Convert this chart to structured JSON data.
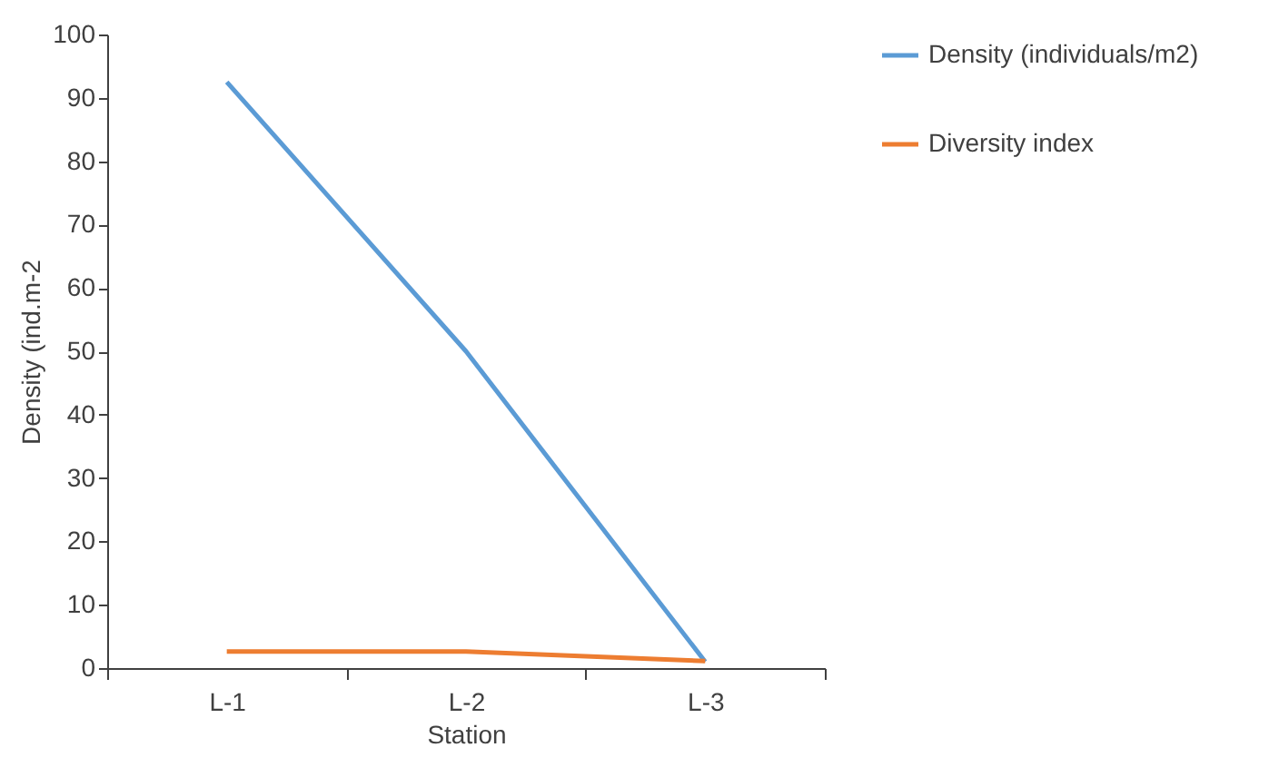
{
  "chart_data": {
    "type": "line",
    "xlabel": "Station",
    "ylabel": "Density (ind.m-2",
    "categories": [
      "L-1",
      "L-2",
      "L-3"
    ],
    "series": [
      {
        "name": "Density (individuals/m2)",
        "color": "#5b9bd5",
        "values": [
          92.5,
          50,
          1
        ]
      },
      {
        "name": "Diversity index",
        "color": "#ed7d31",
        "values": [
          2.6,
          2.6,
          1.1
        ]
      }
    ],
    "ylim": [
      0,
      100
    ],
    "yticks": [
      0,
      10,
      20,
      30,
      40,
      50,
      60,
      70,
      80,
      90,
      100
    ],
    "grid": false,
    "legend": "right",
    "marker": "none",
    "line_style": "solid"
  }
}
